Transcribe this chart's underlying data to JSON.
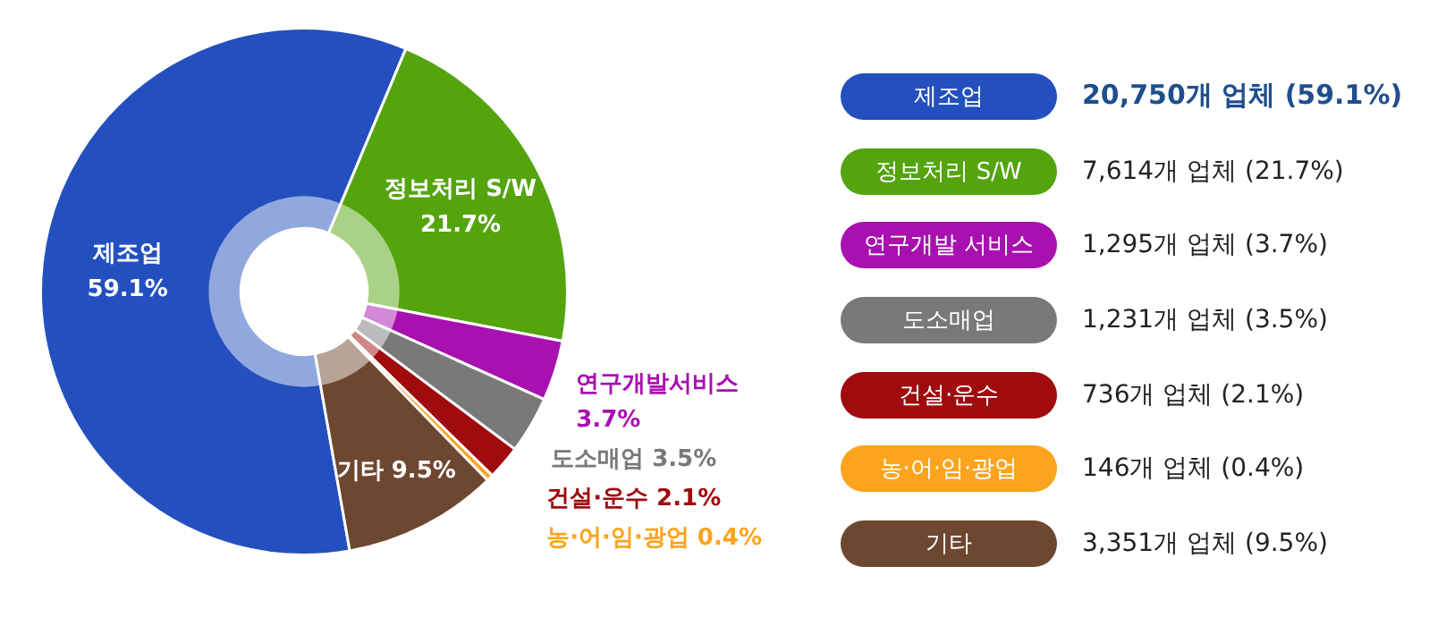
{
  "chart_data": {
    "type": "donut",
    "categories": [
      "제조업",
      "정보처리 S/W",
      "연구개발 서비스",
      "도소매업",
      "건설·운수",
      "농·어·임·광업",
      "기타"
    ],
    "values": [
      59.1,
      21.7,
      3.7,
      3.5,
      2.1,
      0.4,
      9.5
    ],
    "colors": [
      "#2350be",
      "#54a40e",
      "#a811b0",
      "#797979",
      "#a00b0e",
      "#fca41e",
      "#6e4730"
    ],
    "value_labels": [
      "제조업\n59.1%",
      "정보처리 S/W\n21.7%",
      "연구개발서비스\n3.7%",
      "도소매업 3.5%",
      "건설·운수 2.1%",
      "농·어·임·광업 0.4%",
      "기타 9.5%"
    ],
    "annotations": [
      "20,750개 업체 (59.1%)",
      "7,614개 업체 (21.7%)",
      "1,295개 업체 (3.7%)",
      "1,231개 업체 (3.5%)",
      "736개 업체 (2.1%)",
      "146개 업체 (0.4%)",
      "3,351개 업체 (9.5%)"
    ],
    "legend": "right"
  }
}
